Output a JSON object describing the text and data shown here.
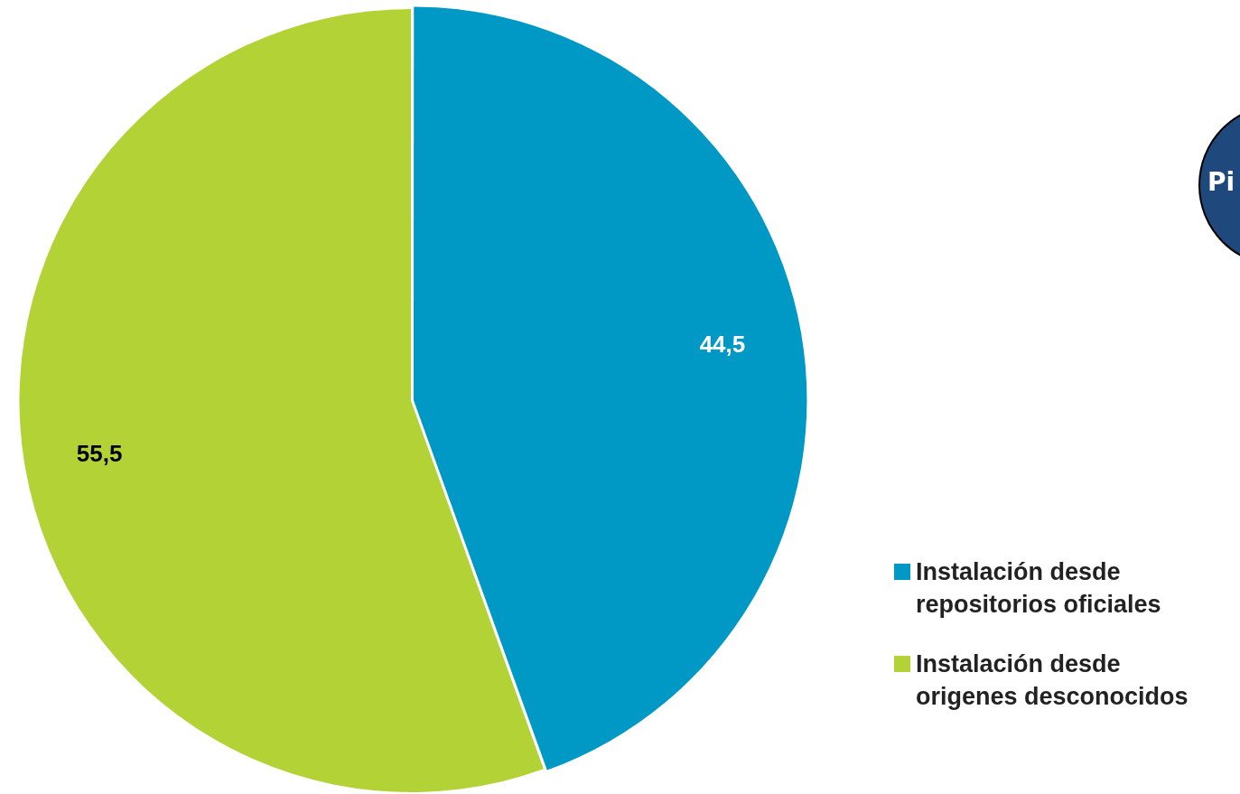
{
  "chart_data": {
    "type": "pie",
    "categories": [
      "Instalación desde repositorios oficiales",
      "Instalación desde origenes desconocidos"
    ],
    "values": [
      44.5,
      55.5
    ],
    "colors": [
      "#0099c6",
      "#b3d236"
    ],
    "value_labels": [
      "44,5",
      "55,5"
    ],
    "legend": "bottom right",
    "annotations": [
      "Pi"
    ]
  }
}
